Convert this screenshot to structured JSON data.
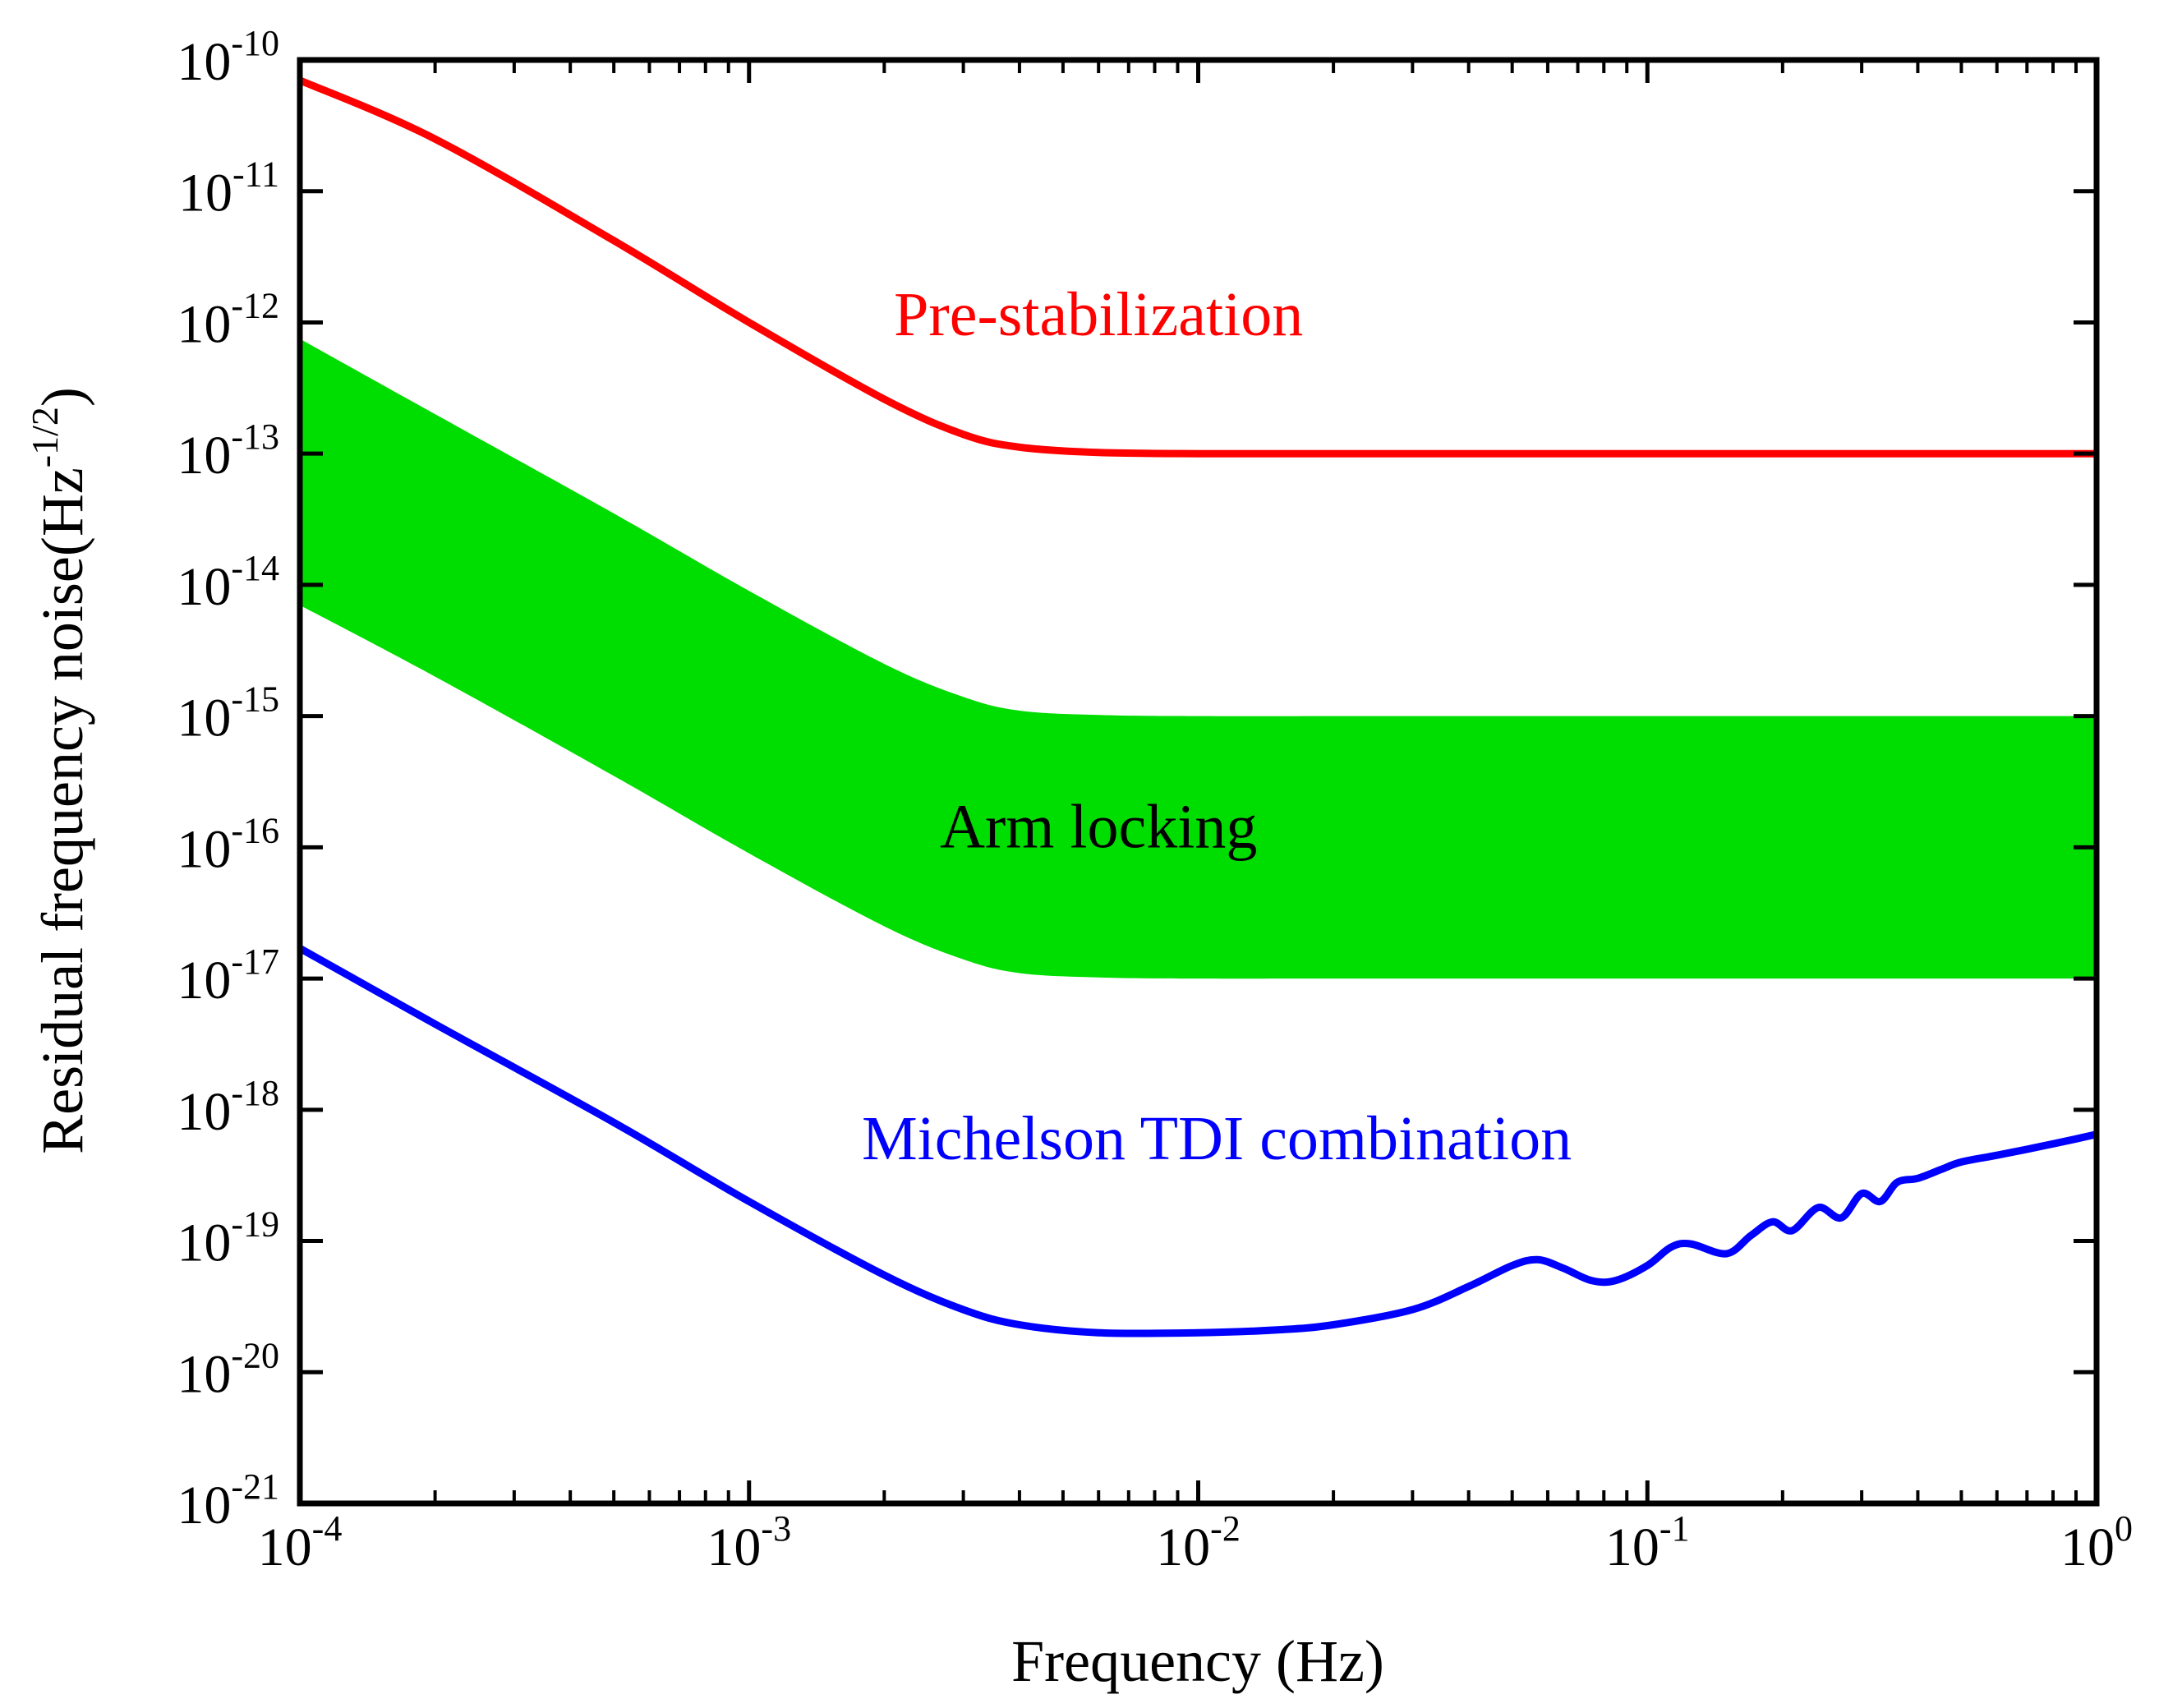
{
  "chart_data": {
    "type": "line",
    "xlabel": "Frequency (Hz)",
    "ylabel": {
      "base": "Residual frequency noise(Hz",
      "exponent": "-1/2",
      "close": ")"
    },
    "xscale": "log",
    "yscale": "log",
    "xlim": [
      0.0001,
      1
    ],
    "ylim": [
      1e-21,
      1e-10
    ],
    "grid": false,
    "x_ticks": [
      {
        "value": 0.0001,
        "base": "10",
        "exp": "-4"
      },
      {
        "value": 0.001,
        "base": "10",
        "exp": "-3"
      },
      {
        "value": 0.01,
        "base": "10",
        "exp": "-2"
      },
      {
        "value": 0.1,
        "base": "10",
        "exp": "-1"
      },
      {
        "value": 1,
        "base": "10",
        "exp": "0"
      }
    ],
    "y_ticks": [
      {
        "value": 1e-10,
        "base": "10",
        "exp": "-10"
      },
      {
        "value": 1e-11,
        "base": "10",
        "exp": "-11"
      },
      {
        "value": 1e-12,
        "base": "10",
        "exp": "-12"
      },
      {
        "value": 1e-13,
        "base": "10",
        "exp": "-13"
      },
      {
        "value": 1e-14,
        "base": "10",
        "exp": "-14"
      },
      {
        "value": 1e-15,
        "base": "10",
        "exp": "-15"
      },
      {
        "value": 1e-16,
        "base": "10",
        "exp": "-16"
      },
      {
        "value": 1e-17,
        "base": "10",
        "exp": "-17"
      },
      {
        "value": 1e-18,
        "base": "10",
        "exp": "-18"
      },
      {
        "value": 1e-19,
        "base": "10",
        "exp": "-19"
      },
      {
        "value": 1e-20,
        "base": "10",
        "exp": "-20"
      },
      {
        "value": 1e-21,
        "base": "10",
        "exp": "-21"
      }
    ],
    "series": [
      {
        "label": "Pre-stabilization",
        "kind": "line",
        "color": "#ff0000",
        "x": [
          0.0001,
          0.0002,
          0.0005,
          0.001,
          0.002,
          0.003,
          0.004,
          0.006,
          0.01,
          0.03,
          0.1,
          0.3,
          1
        ],
        "y": [
          7e-11,
          2.5e-11,
          4.2e-12,
          1e-12,
          2.6e-13,
          1.4e-13,
          1.12e-13,
          1.02e-13,
          1e-13,
          1e-13,
          1e-13,
          1e-13,
          1e-13
        ]
      },
      {
        "label": "Arm locking",
        "kind": "band",
        "color": "#00dd00",
        "x": [
          0.0001,
          0.0002,
          0.0005,
          0.001,
          0.002,
          0.003,
          0.004,
          0.006,
          0.01,
          0.03,
          0.1,
          0.3,
          1
        ],
        "y_upper": [
          7.5e-13,
          2e-13,
          3.5e-14,
          9e-15,
          2.5e-15,
          1.4e-15,
          1.1e-15,
          1.02e-15,
          1e-15,
          1e-15,
          1e-15,
          1e-15,
          1e-15
        ],
        "y_lower": [
          7e-15,
          2e-15,
          3.5e-16,
          9e-17,
          2.5e-17,
          1.4e-17,
          1.1e-17,
          1.02e-17,
          1e-17,
          1e-17,
          1e-17,
          1e-17,
          1e-17
        ]
      },
      {
        "label": "Michelson TDI combination",
        "kind": "line",
        "color": "#0000ff",
        "x": [
          0.0001,
          0.0002,
          0.0005,
          0.001,
          0.002,
          0.003,
          0.004,
          0.006,
          0.01,
          0.015,
          0.02,
          0.03,
          0.04,
          0.05,
          0.057,
          0.065,
          0.075,
          0.085,
          0.1,
          0.113,
          0.125,
          0.15,
          0.17,
          0.19,
          0.21,
          0.24,
          0.27,
          0.3,
          0.33,
          0.36,
          0.4,
          0.45,
          0.5,
          0.6,
          0.7,
          0.8,
          0.9,
          1
        ],
        "y": [
          1.7e-17,
          4.5e-18,
          8e-19,
          2e-19,
          5.5e-20,
          3e-20,
          2.3e-20,
          2e-20,
          2e-20,
          2.1e-20,
          2.3e-20,
          3e-20,
          4.5e-20,
          6.5e-20,
          7.2e-20,
          6.2e-20,
          5e-20,
          5e-20,
          6.5e-20,
          9e-20,
          9.5e-20,
          8e-20,
          1.1e-19,
          1.4e-19,
          1.2e-19,
          1.8e-19,
          1.5e-19,
          2.3e-19,
          2e-19,
          2.8e-19,
          3e-19,
          3.5e-19,
          4e-19,
          4.5e-19,
          5e-19,
          5.5e-19,
          6e-19,
          6.5e-19
        ]
      }
    ],
    "annotations": [
      {
        "text": "Pre-stabilization",
        "color": "#ff0000",
        "x": 0.006,
        "y": 8e-13
      },
      {
        "text": "Arm locking",
        "color": "#000000",
        "x": 0.006,
        "y": 1e-16
      },
      {
        "text": "Michelson TDI combination",
        "color": "#0000ff",
        "x": 0.011,
        "y": 4.2e-19
      }
    ]
  }
}
